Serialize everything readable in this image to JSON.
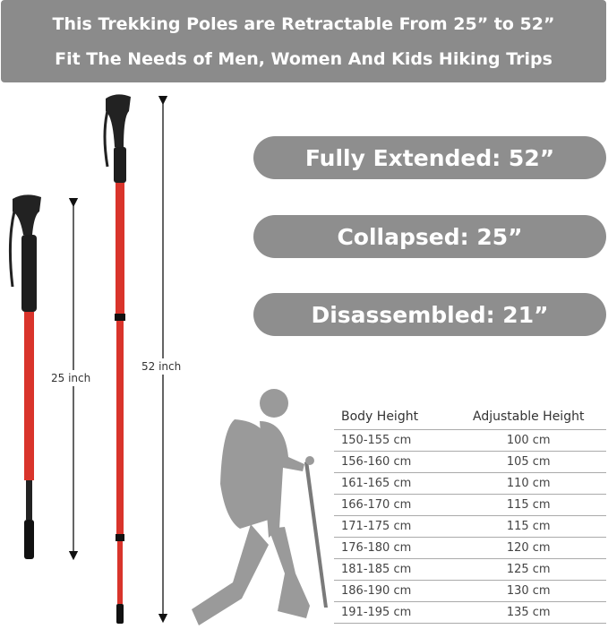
{
  "banner": {
    "line1": "This Trekking Poles are Retractable From 25” to 52”",
    "line2": "Fit The Needs of Men, Women And Kids Hiking Trips"
  },
  "specs": [
    "Fully Extended: 52”",
    "Collapsed: 25”",
    "Disassembled: 21”"
  ],
  "measurements": {
    "collapsed": "25 inch",
    "extended": "52 inch"
  },
  "colors": {
    "banner": "#8b8b8b",
    "pole": "#d9342b",
    "silhouette": "#9a9a9a"
  },
  "table": {
    "headers": [
      "Body Height",
      "Adjustable Height"
    ],
    "rows": [
      [
        "150-155 cm",
        "100 cm"
      ],
      [
        "156-160 cm",
        "105 cm"
      ],
      [
        "161-165 cm",
        "110 cm"
      ],
      [
        "166-170 cm",
        "115 cm"
      ],
      [
        "171-175 cm",
        "115 cm"
      ],
      [
        "176-180 cm",
        "120 cm"
      ],
      [
        "181-185 cm",
        "125 cm"
      ],
      [
        "186-190 cm",
        "130 cm"
      ],
      [
        "191-195 cm",
        "135 cm"
      ]
    ]
  }
}
